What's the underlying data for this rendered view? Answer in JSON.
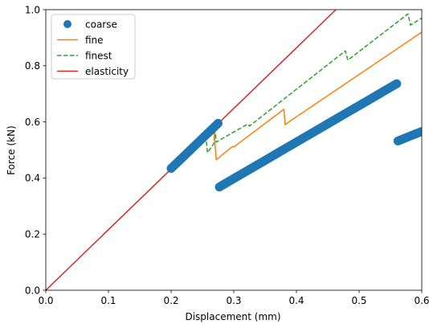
{
  "chart_data": {
    "type": "line",
    "xlabel": "Displacement (mm)",
    "ylabel": "Force (kN)",
    "xlim": [
      0.0,
      0.6
    ],
    "ylim": [
      0.0,
      1.0
    ],
    "xticks": [
      "0.0",
      "0.1",
      "0.2",
      "0.3",
      "0.4",
      "0.5",
      "0.6"
    ],
    "yticks": [
      "0.0",
      "0.2",
      "0.4",
      "0.6",
      "0.8",
      "1.0"
    ],
    "grid": false,
    "legend_position": "top-left",
    "series": [
      {
        "name": "coarse",
        "style": "markers",
        "color": "#1f77b4",
        "segments": [
          [
            [
              0.2,
              0.434
            ],
            [
              0.275,
              0.595
            ]
          ],
          [
            [
              0.277,
              0.368
            ],
            [
              0.56,
              0.736
            ]
          ],
          [
            [
              0.562,
              0.532
            ],
            [
              0.6,
              0.566
            ]
          ]
        ]
      },
      {
        "name": "fine",
        "style": "solid",
        "color": "#ff7f0e",
        "segments": [
          [
            [
              0.2,
              0.434
            ],
            [
              0.268,
              0.578
            ],
            [
              0.272,
              0.465
            ],
            [
              0.29,
              0.498
            ],
            [
              0.298,
              0.512
            ],
            [
              0.301,
              0.512
            ],
            [
              0.38,
              0.645
            ],
            [
              0.382,
              0.59
            ],
            [
              0.39,
              0.603
            ],
            [
              0.6,
              0.92
            ]
          ]
        ]
      },
      {
        "name": "finest",
        "style": "dashed",
        "color": "#2ca02c",
        "segments": [
          [
            [
              0.2,
              0.434
            ],
            [
              0.255,
              0.56
            ],
            [
              0.258,
              0.49
            ],
            [
              0.268,
              0.522
            ],
            [
              0.27,
              0.568
            ],
            [
              0.272,
              0.528
            ],
            [
              0.322,
              0.592
            ],
            [
              0.325,
              0.585
            ],
            [
              0.478,
              0.853
            ],
            [
              0.482,
              0.82
            ],
            [
              0.578,
              0.985
            ],
            [
              0.582,
              0.945
            ],
            [
              0.6,
              0.97
            ]
          ]
        ]
      },
      {
        "name": "elasticity",
        "style": "solid",
        "color": "#d62728",
        "segments": [
          [
            [
              0.0,
              0.0
            ],
            [
              0.463,
              1.0
            ]
          ]
        ]
      }
    ]
  }
}
